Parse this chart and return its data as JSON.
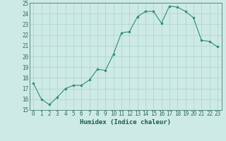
{
  "x": [
    0,
    1,
    2,
    3,
    4,
    5,
    6,
    7,
    8,
    9,
    10,
    11,
    12,
    13,
    14,
    15,
    16,
    17,
    18,
    19,
    20,
    21,
    22,
    23
  ],
  "y": [
    17.5,
    16.0,
    15.5,
    16.2,
    17.0,
    17.3,
    17.3,
    17.8,
    18.8,
    18.7,
    20.2,
    22.2,
    22.3,
    23.7,
    24.2,
    24.2,
    23.1,
    24.7,
    24.6,
    24.2,
    23.6,
    21.5,
    21.4,
    20.9
  ],
  "line_color": "#2e8b7a",
  "marker_color": "#2e8b7a",
  "bg_color": "#ceeae5",
  "grid_color": "#aad3cc",
  "xlabel": "Humidex (Indice chaleur)",
  "ylim": [
    15,
    25
  ],
  "xlim_min": -0.5,
  "xlim_max": 23.5,
  "yticks": [
    15,
    16,
    17,
    18,
    19,
    20,
    21,
    22,
    23,
    24,
    25
  ],
  "xticks": [
    0,
    1,
    2,
    3,
    4,
    5,
    6,
    7,
    8,
    9,
    10,
    11,
    12,
    13,
    14,
    15,
    16,
    17,
    18,
    19,
    20,
    21,
    22,
    23
  ],
  "tick_color": "#2e6b5e",
  "label_color": "#1a5a4e",
  "tick_fontsize": 5.5,
  "xlabel_fontsize": 6.5,
  "linewidth": 0.8,
  "markersize": 2.0
}
